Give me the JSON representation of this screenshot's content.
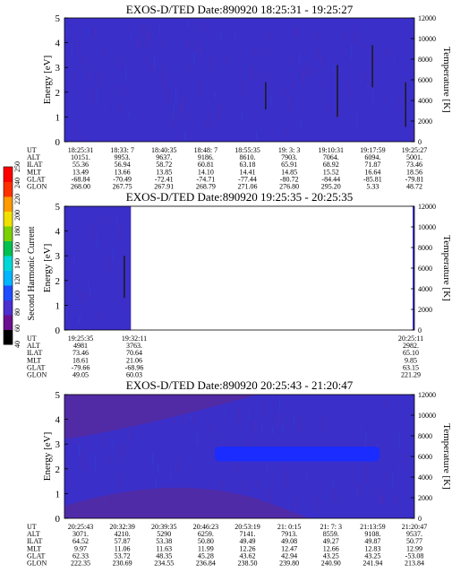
{
  "chart_data": [
    {
      "type": "heatmap",
      "title": "EXOS-D/TED   Date:890920   18:25:31 - 19:25:27",
      "ylabel": "Energy [eV]",
      "ylabel_right": "Temperature [K]",
      "ylim": [
        0,
        5
      ],
      "ylim_right": [
        0,
        12000
      ],
      "yticks": [
        "0",
        "1",
        "2",
        "3",
        "4",
        "5"
      ],
      "yticks_right": [
        "0",
        "2000",
        "4000",
        "6000",
        "8000",
        "10000",
        "12000"
      ],
      "background_color": "#3b2fc9",
      "row_labels": [
        "UT",
        "ALT",
        "ILAT",
        "MLT",
        "GLAT",
        "GLON"
      ],
      "columns": [
        [
          "18:25:31",
          "10151.",
          "55.36",
          "13.49",
          "-68.84",
          "268.00"
        ],
        [
          "18:33: 7",
          "9953.",
          "56.94",
          "13.66",
          "-70.49",
          "267.75"
        ],
        [
          "18:40:35",
          "9637.",
          "58.72",
          "13.85",
          "-72.41",
          "267.91"
        ],
        [
          "18:48: 7",
          "9186.",
          "60.81",
          "14.10",
          "-74.71",
          "268.79"
        ],
        [
          "18:55:35",
          "8610.",
          "63.18",
          "14.41",
          "-77.44",
          "271.06"
        ],
        [
          "19: 3: 3",
          "7903.",
          "65.91",
          "14.85",
          "-80.72",
          "276.80"
        ],
        [
          "19:10:31",
          "7064.",
          "68.92",
          "15.52",
          "-84.44",
          "295.20"
        ],
        [
          "19:17:59",
          "6094.",
          "71.87",
          "16.64",
          "-85.81",
          "5.33"
        ],
        [
          "19:25:27",
          "5001.",
          "73.46",
          "18.56",
          "-79.81",
          "48.72"
        ]
      ],
      "colorbar": {
        "label": "Second Harmonic Current",
        "ticks": [
          "40",
          "60",
          "80",
          "100",
          "120",
          "140",
          "160",
          "180",
          "200",
          "220",
          "240",
          "250"
        ],
        "colors": [
          "#000000",
          "#6b0f8f",
          "#4b2fd1",
          "#1f4cff",
          "#00b4ff",
          "#00d8d8",
          "#00c050",
          "#7ad000",
          "#f0e000",
          "#ff9a00",
          "#ff3000",
          "#ff0000"
        ]
      },
      "streaks": [
        {
          "t": 0.575,
          "y0": 1.3,
          "y1": 2.4
        },
        {
          "t": 0.78,
          "y0": 1.0,
          "y1": 3.1
        },
        {
          "t": 0.88,
          "y0": 2.2,
          "y1": 3.9
        },
        {
          "t": 0.975,
          "y0": 0.6,
          "y1": 2.4
        }
      ]
    },
    {
      "type": "heatmap",
      "title": "EXOS-D/TED   Date:890920   19:25:35 - 20:25:35",
      "ylabel": "Energy [eV]",
      "ylabel_right": "Temperature [K]",
      "ylim": [
        0,
        5
      ],
      "ylim_right": [
        0,
        12000
      ],
      "yticks": [
        "0",
        "1",
        "2",
        "3",
        "4",
        "5"
      ],
      "yticks_right": [
        "0",
        "2000",
        "4000",
        "6000",
        "8000",
        "10000",
        "12000"
      ],
      "background_color": "#3b2fc9",
      "data_fraction": 0.19,
      "row_labels": [
        "UT",
        "ALT",
        "ILAT",
        "MLT",
        "GLAT",
        "GLON"
      ],
      "columns": [
        [
          "19:25:35",
          "4981",
          "73.46",
          "18.61",
          "-79.66",
          "49.05"
        ],
        [
          "19:32:11",
          "3763.",
          "70.64",
          "21.06",
          "-68.96",
          "60.03"
        ]
      ],
      "end_column": [
        "20:25:11",
        "2982.",
        "65.10",
        "9.85",
        "63.15",
        "221.29"
      ],
      "streaks": [
        {
          "t": 0.9,
          "y0": 1.3,
          "y1": 3.0
        }
      ]
    },
    {
      "type": "heatmap",
      "title": "EXOS-D/TED   Date:890920   20:25:43 - 21:20:47",
      "ylabel": "Energy [eV]",
      "ylabel_right": "Temperature [K]",
      "ylim": [
        0,
        5
      ],
      "ylim_right": [
        0,
        12000
      ],
      "yticks": [
        "0",
        "1",
        "2",
        "3",
        "4",
        "5"
      ],
      "yticks_right": [
        "0",
        "2000",
        "4000",
        "6000",
        "8000",
        "10000",
        "12000"
      ],
      "background_color": "#3b2fc9",
      "band": {
        "t0": 0.43,
        "t1": 0.9,
        "y0": 2.3,
        "y1": 2.9,
        "color": "#1a2cff"
      },
      "row_labels": [
        "UT",
        "ALT",
        "ILAT",
        "MLT",
        "GLAT",
        "GLON"
      ],
      "columns": [
        [
          "20:25:43",
          "3071.",
          "64.52",
          "9.97",
          "62.33",
          "222.35"
        ],
        [
          "20:32:39",
          "4210.",
          "57.87",
          "11.06",
          "53.72",
          "230.69"
        ],
        [
          "20:39:35",
          "5290",
          "53.38",
          "11.63",
          "48.35",
          "234.55"
        ],
        [
          "20:46:23",
          "6259.",
          "50.80",
          "11.99",
          "45.28",
          "236.84"
        ],
        [
          "20:53:19",
          "7141.",
          "49.49",
          "12.26",
          "43.62",
          "238.50"
        ],
        [
          "21: 0:15",
          "7913.",
          "49.08",
          "12.47",
          "42.94",
          "239.80"
        ],
        [
          "21: 7: 3",
          "8559.",
          "49.27",
          "12.66",
          "43.25",
          "240.90"
        ],
        [
          "21:13:59",
          "9108.",
          "49.87",
          "12.83",
          "43.25",
          "241.94"
        ],
        [
          "21:20:47",
          "9537.",
          "50.77",
          "12.99",
          "-53.08",
          "213.84"
        ]
      ]
    }
  ]
}
